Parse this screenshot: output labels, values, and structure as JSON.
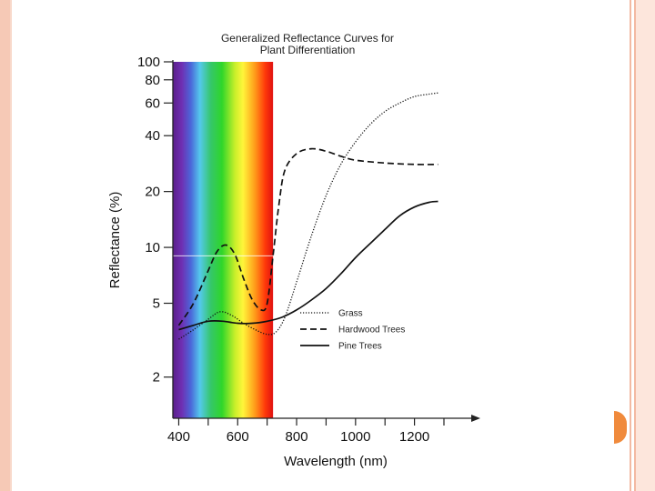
{
  "colors": {
    "border": "#f6c9b6",
    "nav_tab": "#f08a3c",
    "curve": "#111111"
  },
  "chart_data": {
    "type": "line",
    "title_lines": [
      "Generalized Reflectance Curves for",
      "Plant Differentiation"
    ],
    "xlabel": "Wavelength (nm)",
    "ylabel": "Reflectance (%)",
    "xlim": [
      380,
      1300
    ],
    "ylim": [
      1.2,
      100
    ],
    "y_scale": "log",
    "x_ticks": [
      400,
      600,
      800,
      1000,
      1200
    ],
    "y_ticks": [
      2,
      5,
      10,
      20,
      40,
      60,
      80,
      100
    ],
    "visible_spectrum_nm": [
      380,
      720
    ],
    "grid": false,
    "legend_position": "right",
    "series": [
      {
        "name": "Grass",
        "style": "dotted",
        "x": [
          400,
          450,
          500,
          540,
          580,
          620,
          660,
          700,
          730,
          760,
          800,
          850,
          900,
          950,
          1000,
          1050,
          1100,
          1150,
          1200,
          1250,
          1280
        ],
        "y": [
          3.2,
          3.6,
          4.1,
          4.5,
          4.3,
          3.9,
          3.6,
          3.4,
          3.5,
          4.2,
          6.5,
          11.5,
          19,
          28,
          37,
          46,
          54,
          60,
          65,
          67,
          68
        ]
      },
      {
        "name": "Hardwood Trees",
        "style": "dashed",
        "x": [
          400,
          450,
          500,
          530,
          560,
          590,
          620,
          650,
          680,
          700,
          720,
          740,
          760,
          800,
          850,
          900,
          950,
          1000,
          1100,
          1200,
          1280
        ],
        "y": [
          3.8,
          5.0,
          7.5,
          9.5,
          10.3,
          9.2,
          6.8,
          5.2,
          4.6,
          5.0,
          9,
          17,
          26,
          32,
          34,
          33,
          31,
          29.5,
          28.5,
          28,
          28
        ]
      },
      {
        "name": "Pine Trees",
        "style": "solid",
        "x": [
          400,
          450,
          500,
          550,
          600,
          650,
          700,
          750,
          800,
          850,
          900,
          950,
          1000,
          1050,
          1100,
          1150,
          1200,
          1250,
          1280
        ],
        "y": [
          3.6,
          3.8,
          4.0,
          4.0,
          3.9,
          3.9,
          4.0,
          4.2,
          4.6,
          5.2,
          6.0,
          7.2,
          8.8,
          10.5,
          12.5,
          14.8,
          16.5,
          17.5,
          17.7
        ]
      }
    ]
  }
}
